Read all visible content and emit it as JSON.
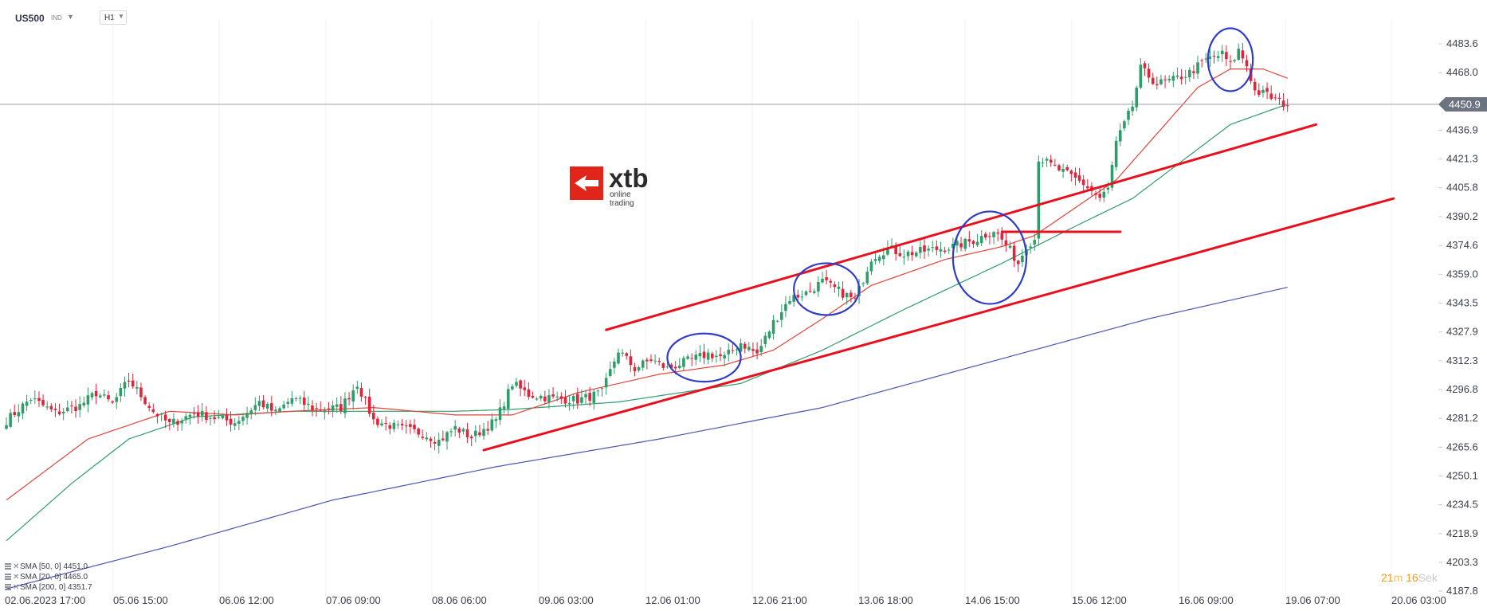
{
  "toolbar": {
    "symbol": "US500",
    "symbol_type": "IND",
    "timeframe": "H1"
  },
  "logo": {
    "word": "xtb",
    "sub": "online trading"
  },
  "countdown": {
    "min": "21",
    "min_unit": "m",
    "sec": "16",
    "sec_unit": "Sek"
  },
  "legend": [
    {
      "text": "SMA [50, 0]  4451.0",
      "color": "#2f9d6a"
    },
    {
      "text": "SMA [20, 0]  4465.0",
      "color": "#e0443a"
    },
    {
      "text": "SMA [200, 0]  4351.7",
      "color": "#4a55b0"
    }
  ],
  "colors": {
    "bull": "#2f9d6a",
    "bear": "#e0243a",
    "sma20": "#e0443a",
    "sma50": "#2f9d6a",
    "sma200": "#4a55b0",
    "trend": "#e8101e",
    "circle": "#2e3cc8",
    "current_price_bg": "#6b7280"
  },
  "chart_data": {
    "type": "candlestick",
    "symbol": "US500",
    "timeframe": "H1",
    "current_price": "4450.9",
    "y_ticks": [
      "4483.6",
      "4468.0",
      "4436.9",
      "4421.3",
      "4405.8",
      "4390.2",
      "4374.6",
      "4359.0",
      "4343.5",
      "4327.9",
      "4312.3",
      "4296.8",
      "4281.2",
      "4265.6",
      "4250.1",
      "4234.5",
      "4218.9",
      "4203.3",
      "4187.8"
    ],
    "ylim": [
      4183.0,
      4500.0
    ],
    "x_labels": [
      "02.06.2023   17:00",
      "05.06   15:00",
      "06.06   12:00",
      "07.06   09:00",
      "08.06   06:00",
      "09.06   03:00",
      "12.06   01:00",
      "12.06   21:00",
      "13.06   18:00",
      "14.06   15:00",
      "15.06   12:00",
      "16.06   09:00",
      "19.06   07:00",
      "20.06   03:00"
    ],
    "anchors_close": [
      [
        0,
        4280
      ],
      [
        6,
        4292
      ],
      [
        12,
        4284
      ],
      [
        18,
        4288
      ],
      [
        22,
        4295
      ],
      [
        26,
        4289
      ],
      [
        30,
        4302
      ],
      [
        36,
        4285
      ],
      [
        40,
        4278
      ],
      [
        46,
        4284
      ],
      [
        52,
        4281
      ],
      [
        56,
        4279
      ],
      [
        62,
        4290
      ],
      [
        66,
        4284
      ],
      [
        70,
        4292
      ],
      [
        76,
        4286
      ],
      [
        82,
        4287
      ],
      [
        86,
        4300
      ],
      [
        90,
        4280
      ],
      [
        96,
        4276
      ],
      [
        102,
        4273
      ],
      [
        106,
        4269
      ],
      [
        110,
        4276
      ],
      [
        114,
        4271
      ],
      [
        120,
        4280
      ],
      [
        124,
        4300
      ],
      [
        128,
        4294
      ],
      [
        134,
        4292
      ],
      [
        140,
        4291
      ],
      [
        146,
        4295
      ],
      [
        150,
        4318
      ],
      [
        154,
        4308
      ],
      [
        158,
        4313
      ],
      [
        162,
        4308
      ],
      [
        168,
        4313
      ],
      [
        172,
        4316
      ],
      [
        176,
        4314
      ],
      [
        180,
        4322
      ],
      [
        184,
        4316
      ],
      [
        188,
        4333
      ],
      [
        192,
        4346
      ],
      [
        196,
        4349
      ],
      [
        200,
        4355
      ],
      [
        204,
        4350
      ],
      [
        208,
        4345
      ],
      [
        212,
        4368
      ],
      [
        216,
        4373
      ],
      [
        220,
        4370
      ],
      [
        226,
        4372
      ],
      [
        232,
        4374
      ],
      [
        238,
        4378
      ],
      [
        242,
        4383
      ],
      [
        246,
        4372
      ],
      [
        248,
        4365
      ],
      [
        250,
        4375
      ],
      [
        252,
        4378
      ],
      [
        253,
        4422
      ],
      [
        256,
        4418
      ],
      [
        260,
        4413
      ],
      [
        264,
        4408
      ],
      [
        268,
        4400
      ],
      [
        270,
        4405
      ],
      [
        272,
        4430
      ],
      [
        276,
        4450
      ],
      [
        278,
        4470
      ],
      [
        282,
        4462
      ],
      [
        286,
        4464
      ],
      [
        290,
        4468
      ],
      [
        294,
        4475
      ],
      [
        298,
        4478
      ],
      [
        300,
        4472
      ],
      [
        302,
        4480
      ],
      [
        304,
        4472
      ],
      [
        306,
        4458
      ],
      [
        309,
        4456
      ],
      [
        312,
        4452
      ],
      [
        314,
        4451
      ]
    ],
    "sma20_anchors": [
      [
        0,
        4237
      ],
      [
        20,
        4270
      ],
      [
        40,
        4285
      ],
      [
        56,
        4283
      ],
      [
        70,
        4285
      ],
      [
        90,
        4287
      ],
      [
        110,
        4283
      ],
      [
        124,
        4283
      ],
      [
        140,
        4295
      ],
      [
        160,
        4305
      ],
      [
        176,
        4310
      ],
      [
        188,
        4318
      ],
      [
        200,
        4335
      ],
      [
        212,
        4353
      ],
      [
        230,
        4367
      ],
      [
        244,
        4374
      ],
      [
        252,
        4380
      ],
      [
        262,
        4395
      ],
      [
        272,
        4410
      ],
      [
        282,
        4435
      ],
      [
        292,
        4460
      ],
      [
        300,
        4470
      ],
      [
        308,
        4470
      ],
      [
        314,
        4465
      ]
    ],
    "sma50_anchors": [
      [
        0,
        4215
      ],
      [
        16,
        4246
      ],
      [
        30,
        4270
      ],
      [
        46,
        4282
      ],
      [
        70,
        4285
      ],
      [
        90,
        4285
      ],
      [
        110,
        4285
      ],
      [
        124,
        4286
      ],
      [
        150,
        4290
      ],
      [
        180,
        4300
      ],
      [
        200,
        4318
      ],
      [
        220,
        4340
      ],
      [
        244,
        4365
      ],
      [
        262,
        4385
      ],
      [
        276,
        4400
      ],
      [
        288,
        4420
      ],
      [
        300,
        4440
      ],
      [
        314,
        4451
      ]
    ],
    "sma200_anchors": [
      [
        0,
        4189
      ],
      [
        40,
        4212
      ],
      [
        80,
        4237
      ],
      [
        120,
        4255
      ],
      [
        160,
        4270
      ],
      [
        200,
        4287
      ],
      [
        240,
        4311
      ],
      [
        280,
        4335
      ],
      [
        314,
        4352
      ]
    ],
    "trendlines": [
      {
        "name": "upper-channel",
        "from": [
          147,
          4329
        ],
        "to": [
          321,
          4440
        ]
      },
      {
        "name": "lower-channel",
        "from": [
          117,
          4264
        ],
        "to": [
          340,
          4400
        ]
      },
      {
        "name": "resistance",
        "from": [
          244,
          4382
        ],
        "to": [
          273,
          4382
        ]
      }
    ],
    "ellipses": [
      {
        "center": [
          171,
          4314
        ],
        "rx_bars": 9,
        "ry_price": 13
      },
      {
        "center": [
          201,
          4351
        ],
        "rx_bars": 8,
        "ry_price": 14
      },
      {
        "center": [
          241,
          4368
        ],
        "rx_bars": 9,
        "ry_price": 25
      },
      {
        "center": [
          300,
          4475
        ],
        "rx_bars": 5.5,
        "ry_price": 17
      }
    ]
  }
}
